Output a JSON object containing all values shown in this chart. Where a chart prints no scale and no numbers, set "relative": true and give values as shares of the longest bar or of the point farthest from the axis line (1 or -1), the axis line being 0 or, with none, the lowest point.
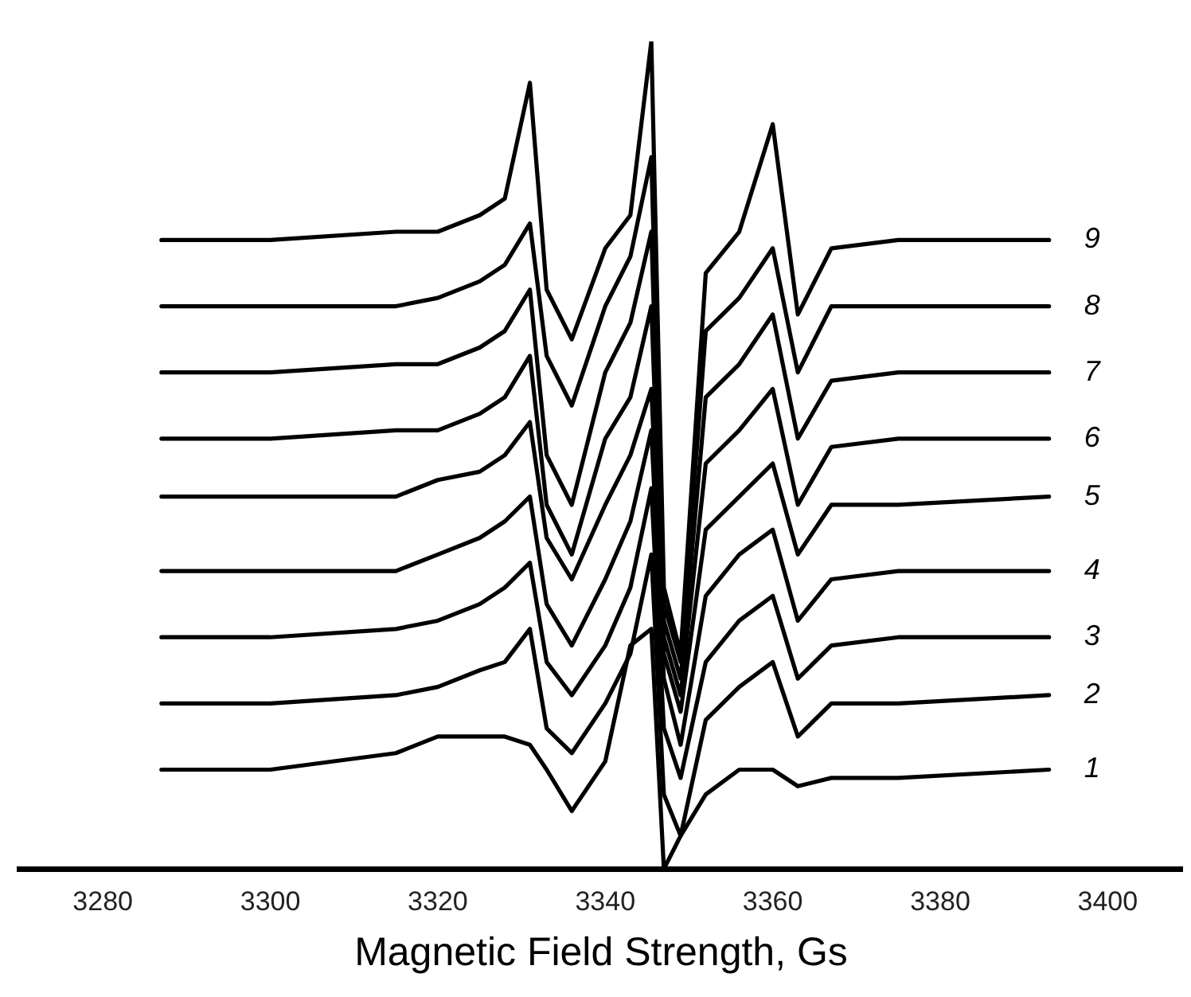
{
  "chart_data": {
    "type": "line",
    "xlabel": "Magnetic Field Strength, Gs",
    "relative": true,
    "xlim": [
      3270,
      3409
    ],
    "xticks": [
      3280,
      3300,
      3320,
      3340,
      3360,
      3380,
      3400
    ],
    "legend": false,
    "marker": "none",
    "line_style": "solid",
    "x": [
      3287,
      3300,
      3315,
      3320,
      3325,
      3328,
      3331,
      3333,
      3336,
      3340,
      3343,
      3345.5,
      3347,
      3349,
      3352,
      3356,
      3360,
      3363,
      3367,
      3375,
      3393
    ],
    "series": [
      {
        "name": "1",
        "color": "#000000",
        "values": [
          0.12,
          0.12,
          0.14,
          0.16,
          0.16,
          0.16,
          0.15,
          0.12,
          0.07,
          0.13,
          0.27,
          0.29,
          0,
          0.04,
          0.09,
          0.12,
          0.12,
          0.1,
          0.11,
          0.11,
          0.12
        ]
      },
      {
        "name": "2",
        "color": "#000000",
        "values": [
          0.2,
          0.2,
          0.21,
          0.22,
          0.24,
          0.25,
          0.29,
          0.17,
          0.14,
          0.2,
          0.26,
          0.38,
          0.09,
          0.04,
          0.18,
          0.22,
          0.25,
          0.16,
          0.2,
          0.2,
          0.21
        ]
      },
      {
        "name": "3",
        "color": "#000000",
        "values": [
          0.28,
          0.28,
          0.29,
          0.3,
          0.32,
          0.34,
          0.37,
          0.25,
          0.21,
          0.27,
          0.34,
          0.46,
          0.17,
          0.11,
          0.25,
          0.3,
          0.33,
          0.23,
          0.27,
          0.28,
          0.28
        ]
      },
      {
        "name": "4",
        "color": "#000000",
        "values": [
          0.36,
          0.36,
          0.36,
          0.38,
          0.4,
          0.42,
          0.45,
          0.32,
          0.27,
          0.35,
          0.42,
          0.53,
          0.23,
          0.15,
          0.33,
          0.38,
          0.41,
          0.3,
          0.35,
          0.36,
          0.36
        ]
      },
      {
        "name": "5",
        "color": "#000000",
        "values": [
          0.45,
          0.45,
          0.45,
          0.47,
          0.48,
          0.5,
          0.54,
          0.4,
          0.35,
          0.44,
          0.5,
          0.58,
          0.26,
          0.19,
          0.41,
          0.45,
          0.49,
          0.38,
          0.44,
          0.44,
          0.45
        ]
      },
      {
        "name": "6",
        "color": "#000000",
        "values": [
          0.52,
          0.52,
          0.53,
          0.53,
          0.55,
          0.57,
          0.62,
          0.44,
          0.38,
          0.52,
          0.57,
          0.68,
          0.28,
          0.21,
          0.49,
          0.53,
          0.58,
          0.44,
          0.51,
          0.52,
          0.52
        ]
      },
      {
        "name": "7",
        "color": "#000000",
        "values": [
          0.6,
          0.6,
          0.61,
          0.61,
          0.63,
          0.65,
          0.7,
          0.5,
          0.44,
          0.6,
          0.66,
          0.77,
          0.3,
          0.23,
          0.57,
          0.61,
          0.67,
          0.52,
          0.59,
          0.6,
          0.6
        ]
      },
      {
        "name": "8",
        "color": "#000000",
        "values": [
          0.68,
          0.68,
          0.68,
          0.69,
          0.71,
          0.73,
          0.78,
          0.62,
          0.56,
          0.68,
          0.74,
          0.86,
          0.32,
          0.25,
          0.65,
          0.69,
          0.75,
          0.6,
          0.68,
          0.68,
          0.68
        ]
      },
      {
        "name": "9",
        "color": "#000000",
        "values": [
          0.76,
          0.76,
          0.77,
          0.77,
          0.79,
          0.81,
          0.95,
          0.7,
          0.64,
          0.75,
          0.79,
          1,
          0.34,
          0.26,
          0.72,
          0.77,
          0.9,
          0.67,
          0.75,
          0.76,
          0.76
        ]
      }
    ]
  }
}
